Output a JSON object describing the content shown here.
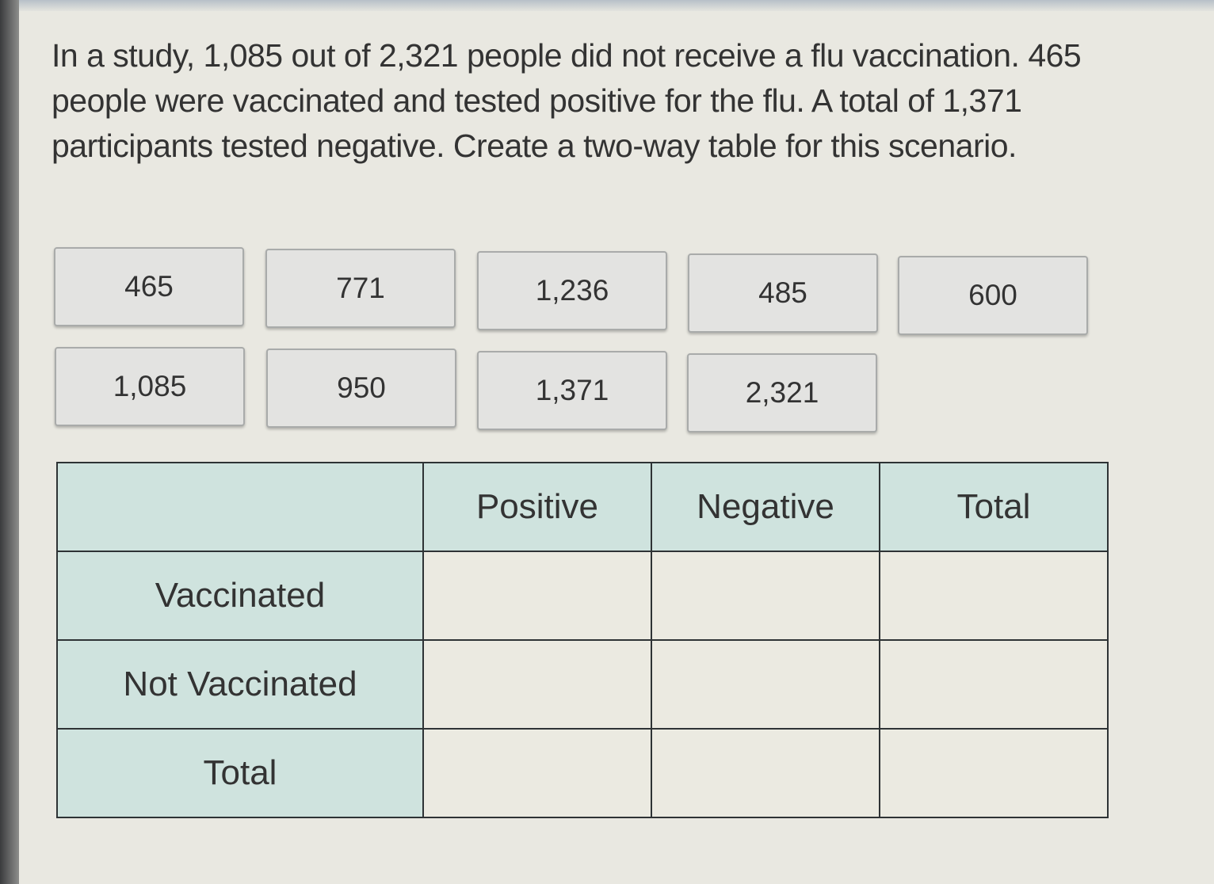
{
  "question": "In a study, 1,085 out of 2,321 people did not receive a flu vaccination. 465 people were vaccinated and tested positive for the flu. A total of 1,371 participants tested negative. Create a two-way table for this scenario.",
  "tiles": [
    "465",
    "771",
    "1,236",
    "485",
    "600",
    "1,085",
    "950",
    "1,371",
    "2,321"
  ],
  "table": {
    "columns": [
      "",
      "Positive",
      "Negative",
      "Total"
    ],
    "rows": [
      "Vaccinated",
      "Not Vaccinated",
      "Total"
    ]
  },
  "colors": {
    "header_bg": "#cfe3de",
    "cell_bg": "#ebeae1",
    "tile_bg": "#e3e3e1"
  }
}
